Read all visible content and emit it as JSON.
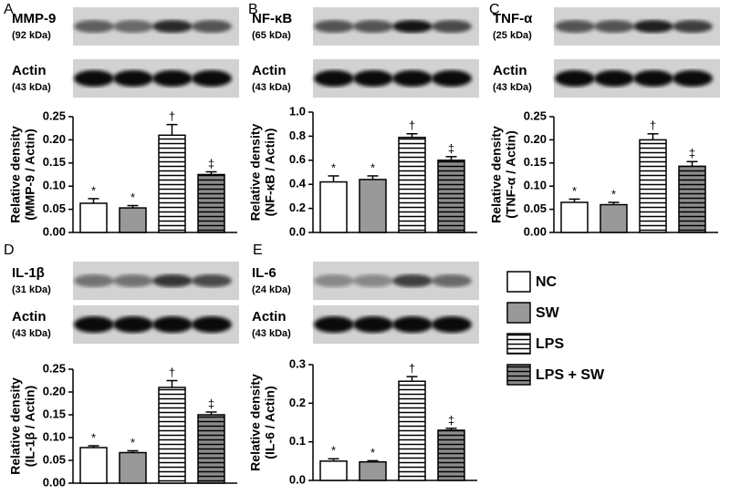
{
  "legend": [
    {
      "name": "NC",
      "color": "#ffffff",
      "hatch": false
    },
    {
      "name": "SW",
      "color": "#999999",
      "hatch": false
    },
    {
      "name": "LPS",
      "color": "#ffffff",
      "hatch": true
    },
    {
      "name": "LPS + SW",
      "color": "#8c8c8c",
      "hatch": true
    }
  ],
  "chart_data": [
    {
      "type": "bar",
      "panel": "A",
      "protein": "MMP-9",
      "protein_size": "(92 kDa)",
      "control": "Actin",
      "control_size": "(43 kDa)",
      "y_label": [
        "Relative density",
        "(MMP-9 / Actin)"
      ],
      "values": [
        0.063,
        0.053,
        0.21,
        0.125
      ],
      "errors": [
        0.01,
        0.005,
        0.023,
        0.006
      ],
      "annotations": [
        "*",
        "*",
        "†",
        "‡"
      ],
      "ylim": [
        0,
        0.25
      ],
      "yticks": [
        {
          "value": 0,
          "label": "0.00"
        },
        0.05,
        {
          "value": 0.1,
          "label": "0.10"
        },
        0.15,
        {
          "value": 0.2,
          "label": "0.20"
        },
        0.25
      ]
    },
    {
      "type": "bar",
      "panel": "B",
      "protein": "NF-κB",
      "protein_size": "(65 kDa)",
      "control": "Actin",
      "control_size": "(43 kDa)",
      "y_label": [
        "Relative density",
        "(NF-κB / Actin)"
      ],
      "values": [
        0.42,
        0.44,
        0.79,
        0.6
      ],
      "errors": [
        0.05,
        0.03,
        0.03,
        0.03
      ],
      "annotations": [
        "*",
        "*",
        "†",
        "‡"
      ],
      "ylim": [
        0,
        1
      ],
      "yticks": [
        {
          "value": 0,
          "label": "0.0"
        },
        0.2,
        0.4,
        0.6,
        0.8,
        {
          "value": 1,
          "label": "1.0"
        }
      ]
    },
    {
      "type": "bar",
      "panel": "C",
      "protein": "TNF-α",
      "protein_size": "(25 kDa)",
      "control": "Actin",
      "control_size": "(43 kDa)",
      "y_label": [
        "Relative density",
        "(TNF-α / Actin)"
      ],
      "values": [
        0.065,
        0.06,
        0.2,
        0.143
      ],
      "errors": [
        0.007,
        0.005,
        0.013,
        0.01
      ],
      "annotations": [
        "*",
        "*",
        "†",
        "‡"
      ],
      "ylim": [
        0,
        0.25
      ],
      "yticks": [
        {
          "value": 0,
          "label": "0.00"
        },
        0.05,
        {
          "value": 0.1,
          "label": "0.10"
        },
        0.15,
        {
          "value": 0.2,
          "label": "0.20"
        },
        0.25
      ]
    },
    {
      "type": "bar",
      "panel": "D",
      "protein": "IL-1β",
      "protein_size": "(31 kDa)",
      "control": "Actin",
      "control_size": "(43 kDa)",
      "y_label": [
        "Relative density",
        "(IL-1β / Actin)"
      ],
      "values": [
        0.078,
        0.067,
        0.21,
        0.15
      ],
      "errors": [
        0.004,
        0.004,
        0.015,
        0.006
      ],
      "annotations": [
        "*",
        "*",
        "†",
        "‡"
      ],
      "ylim": [
        0,
        0.25
      ],
      "yticks": [
        {
          "value": 0,
          "label": "0.00"
        },
        0.05,
        {
          "value": 0.1,
          "label": "0.10"
        },
        0.15,
        {
          "value": 0.2,
          "label": "0.20"
        },
        0.25
      ]
    },
    {
      "type": "bar",
      "panel": "E",
      "protein": "IL-6",
      "protein_size": "(24 kDa)",
      "control": "Actin",
      "control_size": "(43 kDa)",
      "y_label": [
        "Relative density",
        "(IL-6 / Actin)"
      ],
      "values": [
        0.05,
        0.048,
        0.257,
        0.13
      ],
      "errors": [
        0.006,
        0.003,
        0.012,
        0.005
      ],
      "annotations": [
        "*",
        "*",
        "†",
        "‡"
      ],
      "ylim": [
        0,
        0.3
      ],
      "yticks": [
        {
          "value": 0,
          "label": "0.0"
        },
        0.1,
        0.2,
        0.3
      ]
    }
  ]
}
